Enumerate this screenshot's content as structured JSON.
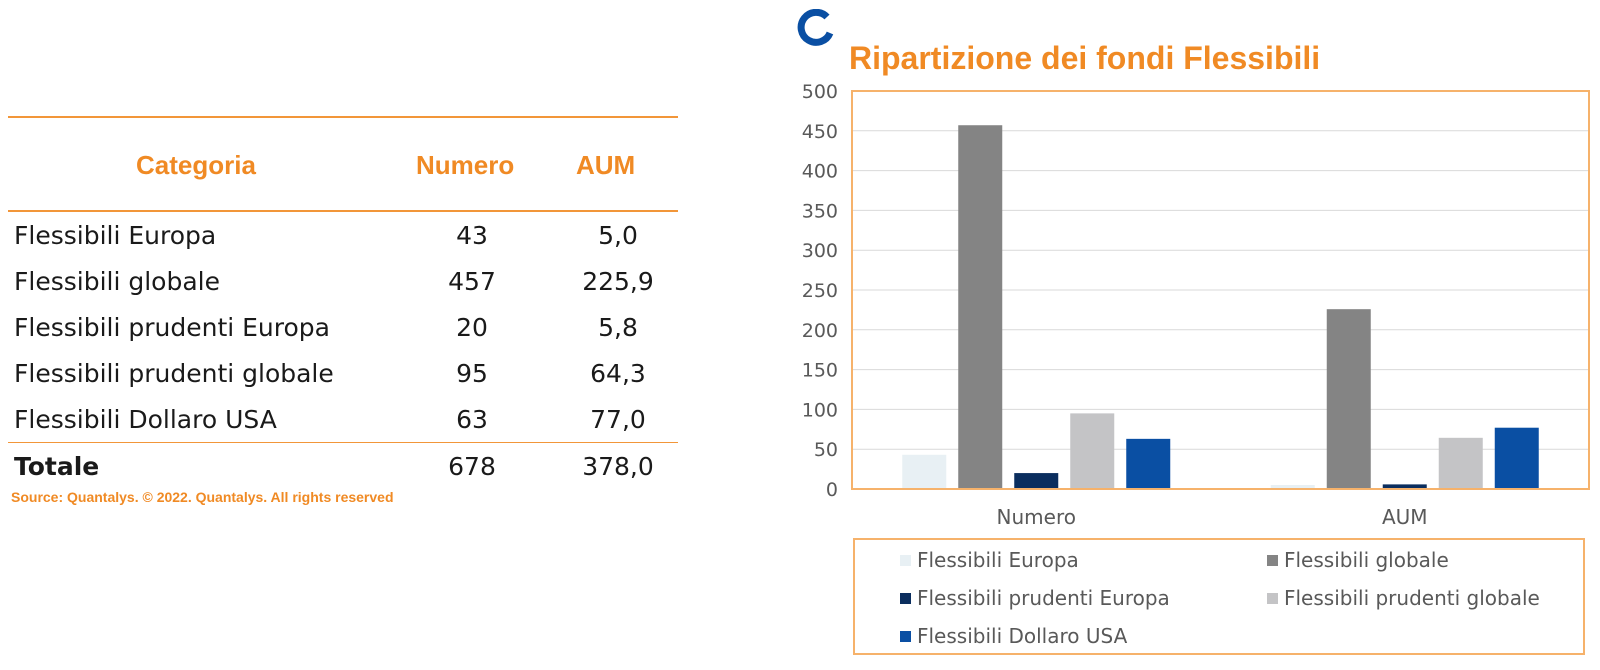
{
  "table": {
    "headers": {
      "category": "Categoria",
      "number": "Numero",
      "aum": "AUM"
    },
    "rows": [
      {
        "category": "Flessibili Europa",
        "number": "43",
        "aum": "5,0"
      },
      {
        "category": "Flessibili globale",
        "number": "457",
        "aum": "225,9"
      },
      {
        "category": "Flessibili prudenti Europa",
        "number": "20",
        "aum": "5,8"
      },
      {
        "category": "Flessibili prudenti globale",
        "number": "95",
        "aum": "64,3"
      },
      {
        "category": "Flessibili Dollaro USA",
        "number": "63",
        "aum": "77,0"
      }
    ],
    "total": {
      "label": "Totale",
      "number": "678",
      "aum": "378,0"
    },
    "source": "Source: Quantalys. © 2022. Quantalys. All rights reserved"
  },
  "colors": {
    "accent": "#f08a24",
    "border": "#f6b26b"
  },
  "chart_data": {
    "type": "bar",
    "title": "Ripartizione dei fondi Flessibili",
    "categories": [
      "Numero",
      "AUM"
    ],
    "ylim": [
      0,
      500
    ],
    "yticks": [
      "0",
      "50",
      "100",
      "150",
      "200",
      "250",
      "300",
      "350",
      "400",
      "450",
      "500"
    ],
    "grid": true,
    "legend_position": "bottom",
    "series": [
      {
        "name": "Flessibili Europa",
        "values": [
          43,
          5.0
        ],
        "color": "#e8f0f4"
      },
      {
        "name": "Flessibili globale",
        "values": [
          457,
          225.9
        ],
        "color": "#848484"
      },
      {
        "name": "Flessibili prudenti Europa",
        "values": [
          20,
          5.8
        ],
        "color": "#0b2e5e"
      },
      {
        "name": "Flessibili prudenti globale",
        "values": [
          95,
          64.3
        ],
        "color": "#c4c4c6"
      },
      {
        "name": "Flessibili Dollaro USA",
        "values": [
          63,
          77.0
        ],
        "color": "#0a4fa3"
      }
    ]
  }
}
